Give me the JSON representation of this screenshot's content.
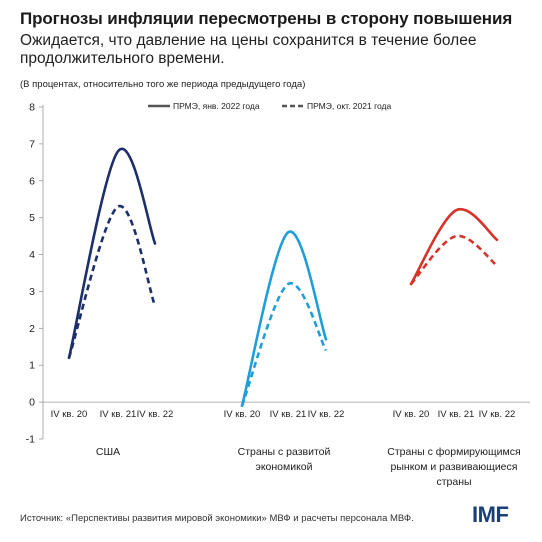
{
  "header": {
    "title": "Прогнозы инфляции пересмотрены в сторону повышения",
    "subtitle": "Ожидается, что давление на цены сохранится в течение более продолжительного времени.",
    "note": "(В процентах, относительно того же периода предыдущего года)"
  },
  "footer": {
    "source": "Источник: «Перспективы развития мировой экономики» МВФ и расчеты персонала МВФ.",
    "logo": "IMF"
  },
  "colors": {
    "usa": "#1c2f6b",
    "advanced": "#1f9ed9",
    "emerging": "#d6332a",
    "axis": "#999999",
    "legend_line": "#555555"
  },
  "chart_data": {
    "type": "line",
    "ylim": [
      -1,
      8
    ],
    "yticks": [
      -1,
      0,
      1,
      2,
      3,
      4,
      5,
      6,
      7,
      8
    ],
    "grid": false,
    "legend_position": "top-right",
    "legend": [
      {
        "label": "ПРМЭ, янв. 2022 года",
        "style": "solid"
      },
      {
        "label": "ПРМЭ, окт. 2021 года",
        "style": "dashed"
      }
    ],
    "groups": [
      {
        "label": "США",
        "color_key": "usa",
        "x": [
          "IV кв. 20",
          "IV кв. 21",
          "IV кв. 22"
        ],
        "series": [
          {
            "name": "ПРМЭ, янв. 2022 года",
            "values": [
              1.2,
              6.8,
              4.3
            ]
          },
          {
            "name": "ПРМЭ, окт. 2021 года",
            "values": [
              1.2,
              5.3,
              2.6
            ]
          }
        ]
      },
      {
        "label": "Страны с развитой экономикой",
        "color_key": "advanced",
        "x": [
          "IV кв. 20",
          "IV кв. 21",
          "IV кв. 22"
        ],
        "series": [
          {
            "name": "ПРМЭ, янв. 2022 года",
            "values": [
              -0.1,
              4.6,
              1.7
            ]
          },
          {
            "name": "ПРМЭ, окт. 2021 года",
            "values": [
              -0.1,
              3.2,
              1.4
            ]
          }
        ]
      },
      {
        "label": "Страны с формирующимся рынком и развивающиеся страны",
        "color_key": "emerging",
        "x": [
          "IV кв. 20",
          "IV кв. 21",
          "IV кв. 22"
        ],
        "series": [
          {
            "name": "ПРМЭ, янв. 2022 года",
            "values": [
              3.2,
              5.2,
              4.4
            ]
          },
          {
            "name": "ПРМЭ, окт. 2021 года",
            "values": [
              3.2,
              4.5,
              3.7
            ]
          }
        ]
      }
    ]
  }
}
